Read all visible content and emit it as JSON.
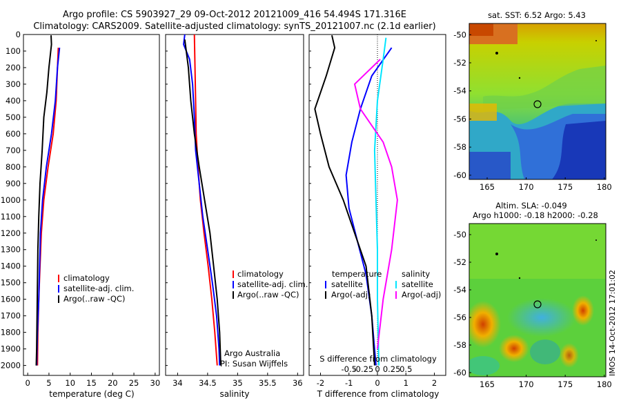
{
  "header": {
    "line1": "Argo profile: CS 5903927_29 09-Oct-2012 20121009_416 54.494S 171.316E",
    "line2": "Climatology: CARS2009. Satellite-adjusted climatology: synTS_20121007.nc (2.1d earlier)"
  },
  "colors": {
    "climatology": "#ff0000",
    "satellite": "#0000ff",
    "argo": "#000000",
    "salinity_satellite": "#00e5ff",
    "salinity_argo": "#ff00ff"
  },
  "chart_data": [
    {
      "type": "line",
      "id": "temperature-profile",
      "xlabel": "temperature (deg C)",
      "xlim": [
        -1,
        31
      ],
      "ylim": [
        2060,
        0
      ],
      "xticks": [
        0,
        5,
        10,
        15,
        20,
        25,
        30
      ],
      "yticks": [
        0,
        100,
        200,
        300,
        400,
        500,
        600,
        700,
        800,
        900,
        1000,
        1100,
        1200,
        1300,
        1400,
        1500,
        1600,
        1700,
        1800,
        1900,
        2000
      ],
      "legend": [
        "climatology",
        "satellite-adj. clim.",
        "Argo(..raw -QC)"
      ],
      "series": [
        {
          "name": "climatology",
          "color": "#ff0000",
          "points": [
            [
              7.2,
              80
            ],
            [
              7.0,
              200
            ],
            [
              6.7,
              400
            ],
            [
              6.0,
              600
            ],
            [
              4.8,
              800
            ],
            [
              3.8,
              1000
            ],
            [
              3.2,
              1200
            ],
            [
              2.9,
              1400
            ],
            [
              2.6,
              1600
            ],
            [
              2.4,
              1800
            ],
            [
              2.3,
              2000
            ]
          ]
        },
        {
          "name": "satellite-adj. clim.",
          "color": "#0000ff",
          "points": [
            [
              7.5,
              80
            ],
            [
              7.0,
              200
            ],
            [
              6.5,
              400
            ],
            [
              5.6,
              600
            ],
            [
              4.4,
              800
            ],
            [
              3.5,
              1000
            ],
            [
              3.0,
              1200
            ],
            [
              2.8,
              1400
            ],
            [
              2.6,
              1600
            ],
            [
              2.3,
              1800
            ],
            [
              2.1,
              2000
            ]
          ]
        },
        {
          "name": "Argo(..raw -QC)",
          "color": "#000000",
          "points": [
            [
              5.5,
              5
            ],
            [
              5.6,
              60
            ],
            [
              5.0,
              200
            ],
            [
              4.5,
              350
            ],
            [
              3.8,
              500
            ],
            [
              3.4,
              700
            ],
            [
              2.9,
              900
            ],
            [
              2.6,
              1100
            ],
            [
              2.4,
              1300
            ],
            [
              2.3,
              1500
            ],
            [
              2.2,
              1700
            ],
            [
              2.1,
              1900
            ],
            [
              2.0,
              2000
            ]
          ]
        }
      ]
    },
    {
      "type": "line",
      "id": "salinity-profile",
      "xlabel": "salinity",
      "xlim": [
        33.8,
        36.1
      ],
      "ylim": [
        2060,
        0
      ],
      "xticks": [
        34,
        34.5,
        35,
        35.5,
        36
      ],
      "legend": [
        "climatology",
        "satellite-adj. clim.",
        "Argo(..raw -QC)"
      ],
      "annotations": [
        "Argo Australia",
        "PI: Susan Wijffels"
      ],
      "series": [
        {
          "name": "climatology",
          "color": "#ff0000",
          "points": [
            [
              34.28,
              0
            ],
            [
              34.29,
              200
            ],
            [
              34.3,
              400
            ],
            [
              34.31,
              600
            ],
            [
              34.34,
              800
            ],
            [
              34.38,
              1000
            ],
            [
              34.44,
              1200
            ],
            [
              34.51,
              1400
            ],
            [
              34.57,
              1600
            ],
            [
              34.62,
              1800
            ],
            [
              34.66,
              2000
            ]
          ]
        },
        {
          "name": "satellite-adj. clim.",
          "color": "#0000ff",
          "points": [
            [
              34.12,
              0
            ],
            [
              34.1,
              60
            ],
            [
              34.2,
              150
            ],
            [
              34.25,
              300
            ],
            [
              34.28,
              500
            ],
            [
              34.3,
              700
            ],
            [
              34.36,
              900
            ],
            [
              34.42,
              1100
            ],
            [
              34.5,
              1300
            ],
            [
              34.58,
              1500
            ],
            [
              34.65,
              1700
            ],
            [
              34.69,
              1900
            ],
            [
              34.7,
              2000
            ]
          ]
        },
        {
          "name": "Argo(..raw -QC)",
          "color": "#000000",
          "points": [
            [
              34.12,
              30
            ],
            [
              34.18,
              200
            ],
            [
              34.22,
              400
            ],
            [
              34.28,
              600
            ],
            [
              34.36,
              800
            ],
            [
              34.45,
              1000
            ],
            [
              34.54,
              1200
            ],
            [
              34.6,
              1400
            ],
            [
              34.66,
              1600
            ],
            [
              34.7,
              1800
            ],
            [
              34.72,
              2000
            ]
          ]
        }
      ]
    },
    {
      "type": "line",
      "id": "difference-profile",
      "xlabel": "T difference from climatology",
      "top_label": "S difference from climatology",
      "xlim": [
        -2.4,
        2.4
      ],
      "ylim": [
        2060,
        0
      ],
      "xticks": [
        "-2",
        "-1",
        "0",
        "1",
        "2"
      ],
      "sticks": [
        "-0.5",
        "-0.25",
        "0",
        "0.25",
        "0.5"
      ],
      "legend_left_title": "temperature",
      "legend_right_title": "salinity",
      "legend": [
        "satellite",
        "Argo(-adj)",
        "satellite",
        "Argo(-adj)"
      ],
      "series": [
        {
          "name": "temperature satellite",
          "color": "#0000ff",
          "points": [
            [
              0.5,
              80
            ],
            [
              -0.2,
              250
            ],
            [
              -0.6,
              450
            ],
            [
              -0.9,
              650
            ],
            [
              -1.1,
              850
            ],
            [
              -1.0,
              1050
            ],
            [
              -0.7,
              1250
            ],
            [
              -0.4,
              1450
            ],
            [
              -0.2,
              1700
            ],
            [
              -0.05,
              2000
            ]
          ]
        },
        {
          "name": "temperature Argo(-adj)",
          "color": "#000000",
          "points": [
            [
              -1.6,
              5
            ],
            [
              -1.5,
              80
            ],
            [
              -1.8,
              250
            ],
            [
              -2.2,
              450
            ],
            [
              -2.0,
              600
            ],
            [
              -1.7,
              800
            ],
            [
              -1.2,
              1000
            ],
            [
              -0.8,
              1200
            ],
            [
              -0.4,
              1400
            ],
            [
              -0.2,
              1700
            ],
            [
              -0.1,
              2000
            ]
          ]
        },
        {
          "name": "salinity satellite",
          "color": "#00e5ff",
          "points": [
            [
              0.3,
              20
            ],
            [
              0.2,
              150
            ],
            [
              0.0,
              400
            ],
            [
              -0.1,
              700
            ],
            [
              -0.05,
              1000
            ],
            [
              0.0,
              1300
            ],
            [
              0.0,
              1600
            ],
            [
              0.05,
              2000
            ]
          ]
        },
        {
          "name": "salinity Argo(-adj)",
          "color": "#ff00ff",
          "points": [
            [
              0.1,
              150
            ],
            [
              -0.8,
              300
            ],
            [
              -0.6,
              450
            ],
            [
              0.2,
              650
            ],
            [
              0.5,
              800
            ],
            [
              0.7,
              1000
            ],
            [
              0.5,
              1300
            ],
            [
              0.2,
              1600
            ],
            [
              0.0,
              1900
            ]
          ]
        }
      ]
    }
  ],
  "maps": [
    {
      "id": "sst-map",
      "title": "sat. SST: 6.52 Argo: 5.43",
      "xticks": [
        "165",
        "170",
        "175",
        "180"
      ],
      "yticks": [
        "-50",
        "-52",
        "-54",
        "-56",
        "-58",
        "-60"
      ]
    },
    {
      "id": "sla-map",
      "title_line1": "Altim. SLA: -0.049",
      "title_line2": "Argo h1000: -0.18 h2000: -0.28",
      "xticks": [
        "165",
        "170",
        "175",
        "180"
      ],
      "yticks": [
        "-50",
        "-52",
        "-54",
        "-56",
        "-58",
        "-60"
      ]
    }
  ],
  "credit": "IMOS 14-Oct-2012 17:01:02"
}
